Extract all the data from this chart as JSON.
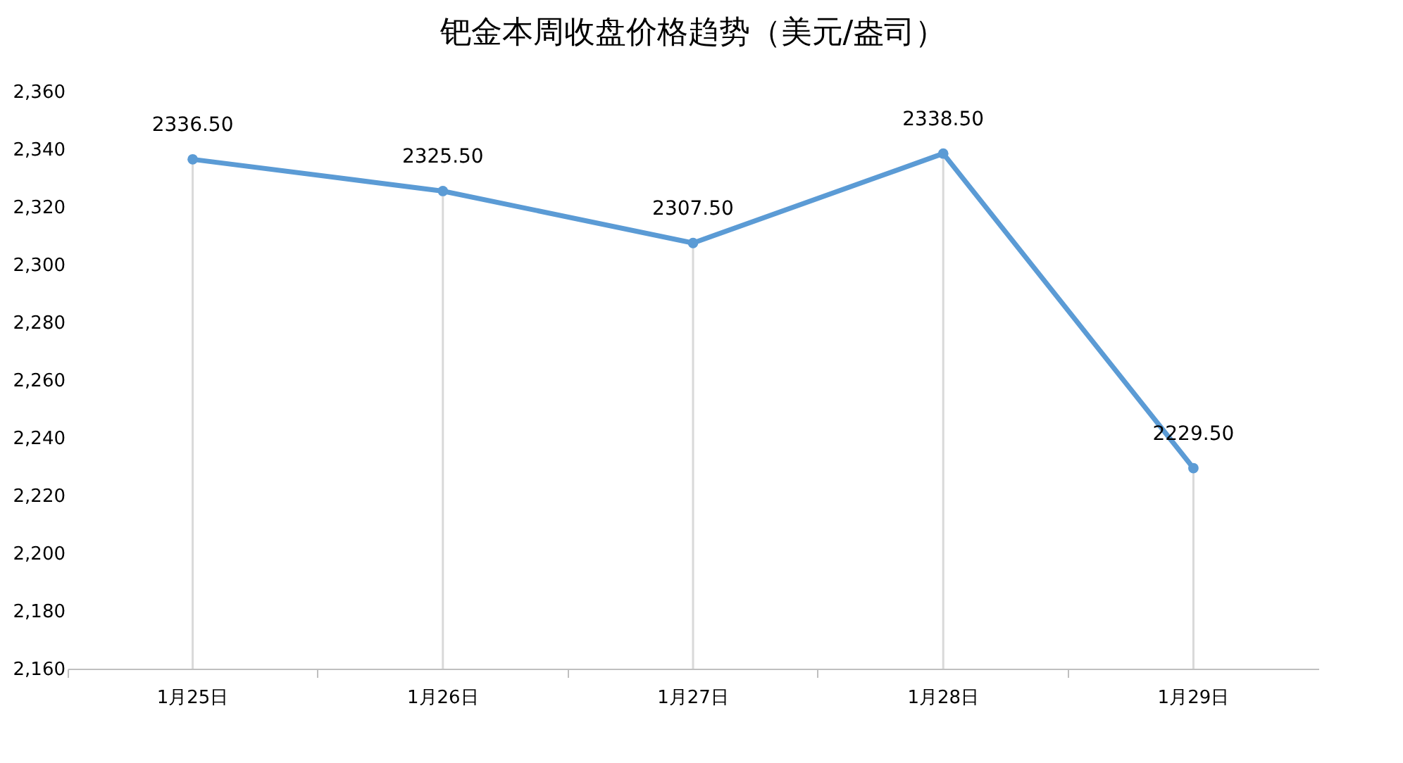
{
  "chart_data": {
    "type": "line",
    "title": "钯金本周收盘价格趋势（美元/盎司）",
    "categories": [
      "1月25日",
      "1月26日",
      "1月27日",
      "1月28日",
      "1月29日"
    ],
    "series": [
      {
        "color": "#5b9bd5",
        "values": [
          2336.5,
          2325.5,
          2307.5,
          2338.5,
          2229.5
        ],
        "value_labels": [
          "2336.50",
          "2325.50",
          "2307.50",
          "2338.50",
          "2229.50"
        ]
      }
    ],
    "ylim": [
      2160,
      2360
    ],
    "yticks": [
      {
        "value": 2160,
        "label": "2,160"
      },
      {
        "value": 2180,
        "label": "2,180"
      },
      {
        "value": 2200,
        "label": "2,200"
      },
      {
        "value": 2220,
        "label": "2,220"
      },
      {
        "value": 2240,
        "label": "2,240"
      },
      {
        "value": 2260,
        "label": "2,260"
      },
      {
        "value": 2280,
        "label": "2,280"
      },
      {
        "value": 2300,
        "label": "2,300"
      },
      {
        "value": 2320,
        "label": "2,320"
      },
      {
        "value": 2340,
        "label": "2,340"
      },
      {
        "value": 2360,
        "label": "2,360"
      }
    ],
    "grid": "x",
    "marker": "circle",
    "line_style": "solid"
  }
}
